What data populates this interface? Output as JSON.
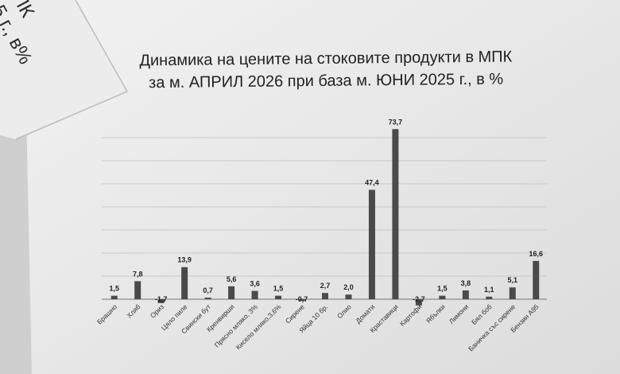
{
  "corner_note": {
    "lines": [
      "ПК",
      "5 г., в%"
    ]
  },
  "chart_data": {
    "type": "bar",
    "title": [
      "Динамика на цените на стоковите продукти в МПК",
      "за м. АПРИЛ 2026 при база м. ЮНИ 2025 г., в %"
    ],
    "xlabel": "",
    "ylabel": "",
    "ylim": [
      -5,
      80
    ],
    "grid": true,
    "legend": "none",
    "bar_color": "#4a4a4a",
    "categories": [
      "Брашно",
      "Хляб",
      "Ориз",
      "Цяло пиле",
      "Свински бут",
      "Кренвирши",
      "Прясно мляко, 3%",
      "Кисело мляко,3,6%",
      "Сирене",
      "Яйца 10 бр.",
      "Олио",
      "Домати",
      "Краставици",
      "Картофи",
      "Ябълки",
      "Лимони",
      "Бял боб",
      "Баничка със сирене",
      "Бензин А95"
    ],
    "values": [
      1.5,
      7.8,
      -1.7,
      13.9,
      0.7,
      5.6,
      3.6,
      1.5,
      -0.7,
      2.7,
      2.0,
      47.4,
      73.7,
      -2.7,
      1.5,
      3.8,
      1.1,
      5.1,
      16.6
    ],
    "value_labels": [
      "1,5",
      "7,8",
      "-1,7",
      "13,9",
      "0,7",
      "5,6",
      "3,6",
      "1,5",
      "-0,7",
      "2,7",
      "2,0",
      "47,4",
      "73,7",
      "-2,7",
      "1,5",
      "3,8",
      "1,1",
      "5,1",
      "16,6"
    ]
  }
}
